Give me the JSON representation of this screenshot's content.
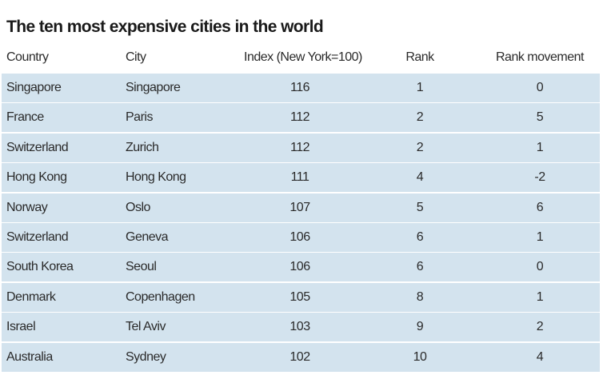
{
  "title": "The ten most expensive cities in the world",
  "table": {
    "columns": [
      "Country",
      "City",
      "Index (New York=100)",
      "Rank",
      "Rank movement"
    ],
    "rows": [
      [
        "Singapore",
        "Singapore",
        116,
        1,
        0
      ],
      [
        "France",
        "Paris",
        112,
        2,
        5
      ],
      [
        "Switzerland",
        "Zurich",
        112,
        2,
        1
      ],
      [
        "Hong Kong",
        "Hong Kong",
        111,
        4,
        -2
      ],
      [
        "Norway",
        "Oslo",
        107,
        5,
        6
      ],
      [
        "Switzerland",
        "Geneva",
        106,
        6,
        1
      ],
      [
        "South Korea",
        "Seoul",
        106,
        6,
        0
      ],
      [
        "Denmark",
        "Copenhagen",
        105,
        8,
        1
      ],
      [
        "Israel",
        "Tel Aviv",
        103,
        9,
        2
      ],
      [
        "Australia",
        "Sydney",
        102,
        10,
        4
      ]
    ]
  }
}
